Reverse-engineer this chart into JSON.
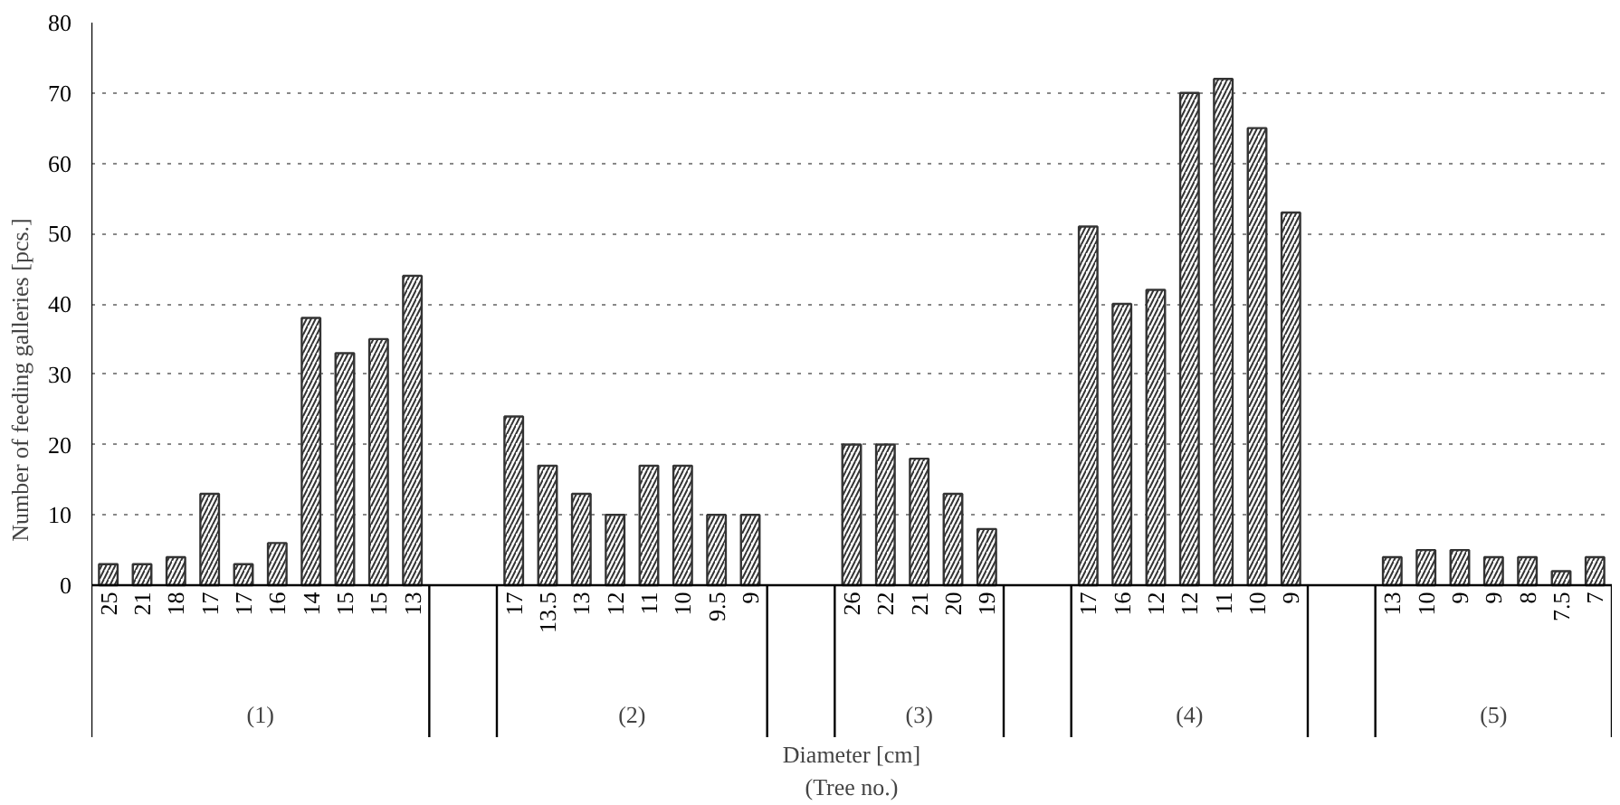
{
  "chart_data": {
    "type": "bar",
    "categories": [
      "25",
      "21",
      "18",
      "17",
      "17",
      "16",
      "14",
      "15",
      "15",
      "13",
      null,
      null,
      "17",
      "13.5",
      "13",
      "12",
      "11",
      "10",
      "9.5",
      "9",
      null,
      null,
      "26",
      "22",
      "21",
      "20",
      "19",
      null,
      null,
      "17",
      "16",
      "12",
      "12",
      "11",
      "10",
      "9",
      null,
      null,
      "13",
      "10",
      "9",
      "9",
      "8",
      "7.5",
      "7"
    ],
    "values": [
      3,
      3,
      4,
      13,
      3,
      6,
      38,
      33,
      35,
      44,
      null,
      null,
      24,
      17,
      13,
      10,
      17,
      17,
      10,
      10,
      null,
      null,
      20,
      20,
      18,
      13,
      8,
      null,
      null,
      51,
      40,
      42,
      70,
      72,
      65,
      53,
      null,
      null,
      4,
      5,
      5,
      4,
      4,
      2,
      4
    ],
    "color": "#333333",
    "xlabel": "Diameter [cm]\n(Tree no.)",
    "ylabel": "Number of feeding galleries [pcs.]",
    "annotations": [
      "(1)",
      "(2)",
      "(3)",
      "(4)",
      "(5)"
    ],
    "ylim": [
      0,
      80
    ],
    "yticks": [
      0,
      10,
      20,
      30,
      40,
      50,
      60,
      70,
      80
    ],
    "grid": "y"
  }
}
